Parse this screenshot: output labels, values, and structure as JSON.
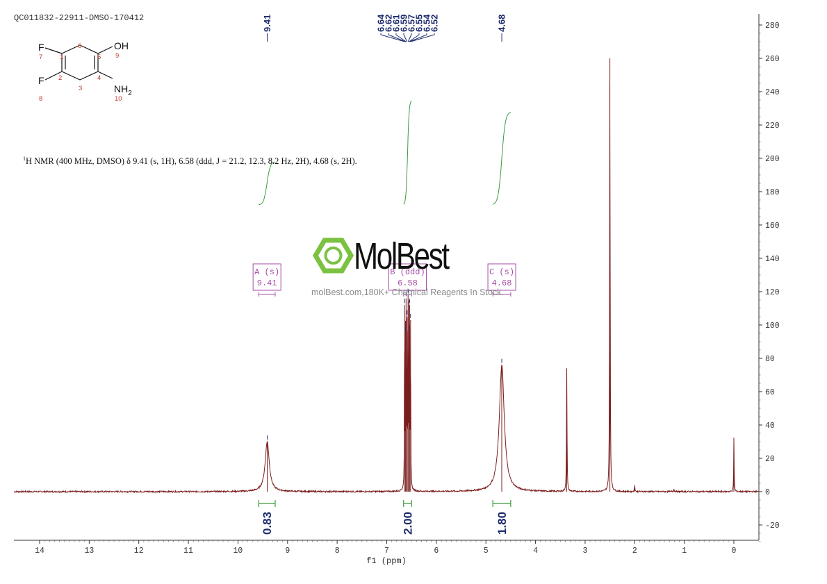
{
  "header": {
    "spectrum_id": "QC011832-22911-DMSO-170412"
  },
  "molecule": {
    "atoms": [
      {
        "label": "F",
        "num": "7"
      },
      {
        "label": "F",
        "num": "8"
      },
      {
        "label": "OH",
        "num": "9"
      },
      {
        "label": "NH2",
        "num": "10"
      }
    ],
    "ring_numbers": [
      "1",
      "2",
      "3",
      "4",
      "5",
      "6"
    ]
  },
  "nmr_summary": {
    "nucleus_sup": "1",
    "text": "H NMR (400 MHz, DMSO) δ 9.41 (s, 1H), 6.58 (ddd, J = 21.2, 12.3, 8.2 Hz, 2H), 4.68 (s, 2H)."
  },
  "watermark": {
    "brand": "MolBest",
    "tagline": "molBest.com,180K+ Chemical Reagents In Stock."
  },
  "colors": {
    "spectrum": "#7b1d1d",
    "integral": "#3a9a3a",
    "peak_label": "#1f2d6e",
    "multiplet_box": "#a64ca6",
    "watermark_green": "#7cc242"
  },
  "chart_data": {
    "type": "line",
    "title": "",
    "xlabel": "f1 (ppm)",
    "ylabel": "",
    "xlim": [
      14.5,
      -0.5
    ],
    "ylim": [
      -30,
      285
    ],
    "x_ticks": [
      "14",
      "13",
      "12",
      "11",
      "10",
      "9",
      "8",
      "7",
      "6",
      "5",
      "4",
      "3",
      "2",
      "1",
      "0"
    ],
    "y_ticks": [
      "280",
      "260",
      "240",
      "220",
      "200",
      "180",
      "160",
      "140",
      "120",
      "100",
      "80",
      "60",
      "40",
      "20",
      "0",
      "-20"
    ],
    "grid": false,
    "peaks": [
      {
        "ppm": 9.41,
        "height": 30,
        "width": 0.05,
        "kind": "broad"
      },
      {
        "ppm": 6.64,
        "height": 112,
        "width": 0.004
      },
      {
        "ppm": 6.62,
        "height": 95,
        "width": 0.004
      },
      {
        "ppm": 6.61,
        "height": 116,
        "width": 0.004
      },
      {
        "ppm": 6.59,
        "height": 105,
        "width": 0.004
      },
      {
        "ppm": 6.57,
        "height": 118,
        "width": 0.004
      },
      {
        "ppm": 6.55,
        "height": 108,
        "width": 0.004
      },
      {
        "ppm": 6.54,
        "height": 112,
        "width": 0.004
      },
      {
        "ppm": 6.52,
        "height": 103,
        "width": 0.004
      },
      {
        "ppm": 4.68,
        "height": 76,
        "width": 0.06,
        "kind": "broad"
      },
      {
        "ppm": 3.37,
        "height": 74,
        "width": 0.006
      },
      {
        "ppm": 2.5,
        "height": 260,
        "width": 0.006
      },
      {
        "ppm": 2.0,
        "height": 4,
        "width": 0.006
      },
      {
        "ppm": 1.21,
        "height": 1.5,
        "width": 0.01
      },
      {
        "ppm": 0.0,
        "height": 32,
        "width": 0.005
      }
    ],
    "peak_labels": [
      {
        "group": [
          {
            "ppm": 9.41,
            "text": "9.41"
          }
        ]
      },
      {
        "group": [
          {
            "ppm": 6.64,
            "text": "6.64"
          },
          {
            "ppm": 6.62,
            "text": "6.62"
          },
          {
            "ppm": 6.61,
            "text": "6.61"
          },
          {
            "ppm": 6.59,
            "text": "6.59"
          },
          {
            "ppm": 6.57,
            "text": "6.57"
          },
          {
            "ppm": 6.55,
            "text": "6.55"
          },
          {
            "ppm": 6.54,
            "text": "6.54"
          },
          {
            "ppm": 6.52,
            "text": "6.52"
          }
        ]
      },
      {
        "group": [
          {
            "ppm": 4.68,
            "text": "4.68"
          }
        ]
      }
    ],
    "multiplets": [
      {
        "letter": "A",
        "mult": "(s)",
        "shift": "9.41",
        "range": [
          9.58,
          9.25
        ]
      },
      {
        "letter": "B",
        "mult": "(ddd)",
        "shift": "6.58",
        "range": [
          6.66,
          6.5
        ]
      },
      {
        "letter": "C",
        "mult": "(s)",
        "shift": "4.68",
        "range": [
          4.86,
          4.5
        ]
      }
    ],
    "integrals": [
      {
        "value": "0.83",
        "range": [
          9.58,
          9.25
        ],
        "y_low": 192,
        "y_high": 218
      },
      {
        "value": "2.00",
        "range": [
          6.66,
          6.5
        ],
        "y_low": 192,
        "y_high": 255
      },
      {
        "value": "1.80",
        "range": [
          4.86,
          4.5
        ],
        "y_low": 192,
        "y_high": 248
      }
    ]
  }
}
